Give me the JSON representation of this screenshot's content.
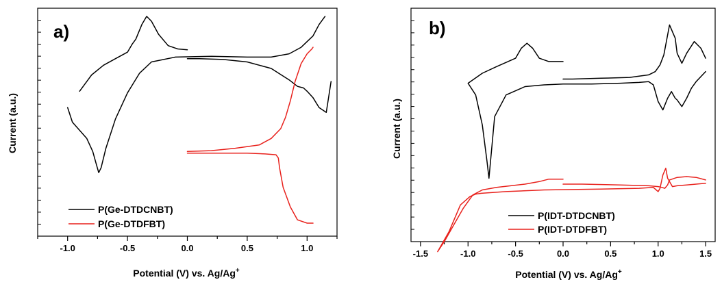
{
  "chart_data": [
    {
      "type": "line",
      "panel_label": "a)",
      "xlabel": "Potential (V) vs. Ag/Ag",
      "xlabel_sup": "+",
      "ylabel": "Current (a.u.)",
      "xlim": [
        -1.25,
        1.25
      ],
      "ylim": [
        -7.0,
        7.0
      ],
      "xticks": [
        -1.0,
        -0.5,
        0.0,
        0.5,
        1.0
      ],
      "xtick_labels": [
        "-1.0",
        "-0.5",
        "0.0",
        "0.5",
        "1.0"
      ],
      "y_tick_labels_shown": false,
      "legend_position": "bottom-left",
      "series": [
        {
          "name": "P(Ge-DTDCNBT)",
          "color": "#000000",
          "x": [
            0.0,
            -0.08,
            -0.16,
            -0.24,
            -0.3,
            -0.34,
            -0.38,
            -0.43,
            -0.46,
            -0.5,
            -0.6,
            -0.7,
            -0.8,
            -0.9,
            -1.0,
            -0.96,
            -0.9,
            -0.84,
            -0.79,
            -0.76,
            -0.74,
            -0.72,
            -0.68,
            -0.6,
            -0.5,
            -0.4,
            -0.3,
            -0.1,
            0.2,
            0.5,
            0.7,
            0.85,
            0.95,
            1.05,
            1.1,
            1.15,
            1.2,
            1.2,
            1.16,
            1.1,
            1.05,
            1.0,
            0.97,
            0.92,
            0.85,
            0.7,
            0.5,
            0.3,
            0.1,
            0.0
          ],
          "y": [
            4.45,
            4.5,
            4.7,
            5.4,
            6.2,
            6.5,
            6.0,
            5.1,
            4.8,
            4.3,
            3.9,
            3.5,
            2.9,
            1.9,
            0.9,
            0.0,
            -0.5,
            -1.0,
            -1.8,
            -2.6,
            -3.1,
            -2.8,
            -1.6,
            0.2,
            1.8,
            3.0,
            3.7,
            4.0,
            4.05,
            4.0,
            4.0,
            4.2,
            4.6,
            5.3,
            6.0,
            6.5,
            6.3,
            2.5,
            0.6,
            0.9,
            1.5,
            1.9,
            2.1,
            2.2,
            2.6,
            3.3,
            3.7,
            3.85,
            3.9,
            3.9
          ],
          "segments": [
            [
              0,
              14
            ],
            [
              14,
              36
            ],
            [
              36,
              37
            ],
            [
              37,
              50
            ]
          ]
        },
        {
          "name": "P(Ge-DTDFBT)",
          "color": "#e8211c",
          "x": [
            0.0,
            0.2,
            0.4,
            0.6,
            0.7,
            0.78,
            0.82,
            0.86,
            0.9,
            0.95,
            1.0,
            1.04,
            1.05,
            1.05,
            1.0,
            0.92,
            0.86,
            0.8,
            0.77,
            0.76,
            0.74,
            0.65,
            0.5,
            0.3,
            0.1,
            0.0
          ],
          "y": [
            -1.8,
            -1.75,
            -1.6,
            -1.4,
            -1.0,
            -0.4,
            0.3,
            1.3,
            2.5,
            3.6,
            4.2,
            4.5,
            4.6,
            -6.2,
            -6.2,
            -6.0,
            -5.2,
            -4.0,
            -2.8,
            -2.2,
            -2.0,
            -1.95,
            -1.9,
            -1.9,
            -1.9,
            -1.9
          ],
          "segments": [
            [
              0,
              13
            ],
            [
              13,
              26
            ]
          ]
        }
      ]
    },
    {
      "type": "line",
      "panel_label": "b)",
      "xlabel": "Potential (V) vs. Ag/Ag",
      "xlabel_sup": "+",
      "ylabel": "Current (a.u.)",
      "xlim": [
        -1.6,
        1.6
      ],
      "ylim": [
        -7.0,
        7.0
      ],
      "xticks": [
        -1.5,
        -1.0,
        -0.5,
        0.0,
        0.5,
        1.0,
        1.5
      ],
      "xtick_labels": [
        "-1.5",
        "-1.0",
        "-0.5",
        "0.0",
        "0.5",
        "1.0",
        "1.5"
      ],
      "y_tick_labels_shown": false,
      "legend_position": "bottom-left",
      "series": [
        {
          "name": "P(IDT-DTDCNBT)",
          "color": "#000000",
          "x": [
            0.0,
            -0.15,
            -0.25,
            -0.32,
            -0.38,
            -0.44,
            -0.5,
            -0.6,
            -0.7,
            -0.85,
            -1.0,
            -0.92,
            -0.85,
            -0.8,
            -0.78,
            -0.76,
            -0.72,
            -0.6,
            -0.4,
            -0.2,
            0.0,
            0.3,
            0.6,
            0.8,
            0.9,
            0.95,
            1.0,
            1.05,
            1.1,
            1.14,
            1.18,
            1.2,
            1.25,
            1.3,
            1.35,
            1.4,
            1.45,
            1.5,
            1.5,
            1.45,
            1.38,
            1.3,
            1.25,
            1.2,
            1.18,
            1.12,
            1.06,
            1.02,
            0.97,
            0.9,
            0.7,
            0.4,
            0.1,
            0.0
          ],
          "y": [
            3.8,
            3.8,
            4.0,
            4.6,
            4.9,
            4.6,
            4.0,
            3.75,
            3.5,
            3.1,
            2.5,
            1.8,
            0.0,
            -2.2,
            -3.2,
            -2.0,
            0.5,
            1.8,
            2.3,
            2.4,
            2.45,
            2.45,
            2.5,
            2.55,
            2.6,
            2.4,
            1.4,
            0.9,
            1.6,
            2.0,
            1.6,
            1.5,
            1.1,
            1.6,
            2.2,
            2.6,
            2.9,
            3.2,
            4.0,
            4.6,
            5.0,
            4.3,
            3.7,
            4.3,
            5.2,
            6.0,
            4.2,
            3.6,
            3.2,
            3.0,
            2.85,
            2.8,
            2.75,
            2.75
          ],
          "segments": [
            [
              0,
              38
            ],
            [
              38,
              54
            ]
          ]
        },
        {
          "name": "P(IDT-DTDFBT)",
          "color": "#e8211c",
          "x": [
            0.0,
            -0.15,
            -0.25,
            -0.4,
            -0.55,
            -0.7,
            -0.85,
            -0.95,
            -1.05,
            -1.15,
            -1.25,
            -1.32,
            -1.2,
            -1.08,
            -0.98,
            -0.92,
            -0.86,
            -0.6,
            -0.2,
            0.4,
            0.8,
            0.95,
            0.98,
            1.0,
            1.02,
            1.05,
            1.08,
            1.1,
            1.15,
            1.2,
            1.3,
            1.4,
            1.5,
            1.5,
            1.4,
            1.3,
            1.2,
            1.12,
            1.1,
            1.07,
            1.04,
            1.0,
            0.9,
            0.6,
            0.2,
            0.0
          ],
          "y": [
            -3.25,
            -3.25,
            -3.4,
            -3.55,
            -3.65,
            -3.75,
            -3.9,
            -4.2,
            -5.0,
            -6.0,
            -7.0,
            -7.6,
            -6.4,
            -4.8,
            -4.3,
            -4.15,
            -4.1,
            -4.0,
            -3.9,
            -3.85,
            -3.8,
            -3.75,
            -3.9,
            -4.0,
            -3.8,
            -3.0,
            -2.6,
            -3.2,
            -3.7,
            -3.65,
            -3.6,
            -3.55,
            -3.5,
            -3.3,
            -3.15,
            -3.1,
            -3.15,
            -3.3,
            -3.6,
            -3.8,
            -3.75,
            -3.7,
            -3.65,
            -3.6,
            -3.55,
            -3.55
          ],
          "segments": [
            [
              0,
              33
            ],
            [
              33,
              46
            ]
          ]
        }
      ]
    }
  ]
}
